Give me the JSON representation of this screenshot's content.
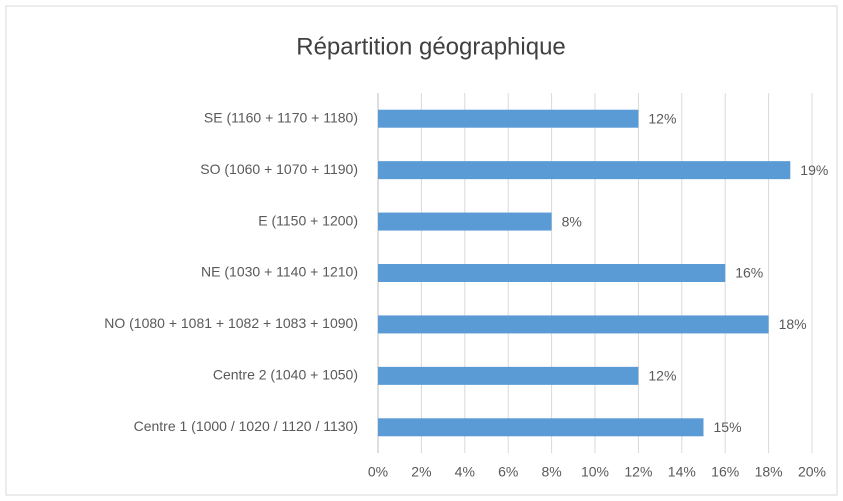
{
  "chart_data": {
    "type": "bar",
    "orientation": "horizontal",
    "title": "Répartition géographique",
    "categories": [
      "SE (1160 + 1170 + 1180)",
      "SO (1060 + 1070 + 1190)",
      "E (1150 + 1200)",
      "NE (1030 + 1140 + 1210)",
      "NO (1080 + 1081 + 1082 + 1083 + 1090)",
      "Centre 2 (1040 + 1050)",
      "Centre 1 (1000 / 1020 / 1120 / 1130)"
    ],
    "values": [
      12,
      19,
      8,
      16,
      18,
      12,
      15
    ],
    "value_labels": [
      "12%",
      "19%",
      "8%",
      "16%",
      "18%",
      "12%",
      "15%"
    ],
    "color": "#5b9bd5",
    "xlim": [
      0,
      20
    ],
    "xticks": [
      {
        "value": 0,
        "label": "0%"
      },
      {
        "value": 2,
        "label": "2%"
      },
      {
        "value": 4,
        "label": "4%"
      },
      {
        "value": 6,
        "label": "6%"
      },
      {
        "value": 8,
        "label": "8%"
      },
      {
        "value": 10,
        "label": "10%"
      },
      {
        "value": 12,
        "label": "12%"
      },
      {
        "value": 14,
        "label": "14%"
      },
      {
        "value": 16,
        "label": "16%"
      },
      {
        "value": 18,
        "label": "18%"
      },
      {
        "value": 20,
        "label": "20%"
      }
    ],
    "grid": true
  }
}
